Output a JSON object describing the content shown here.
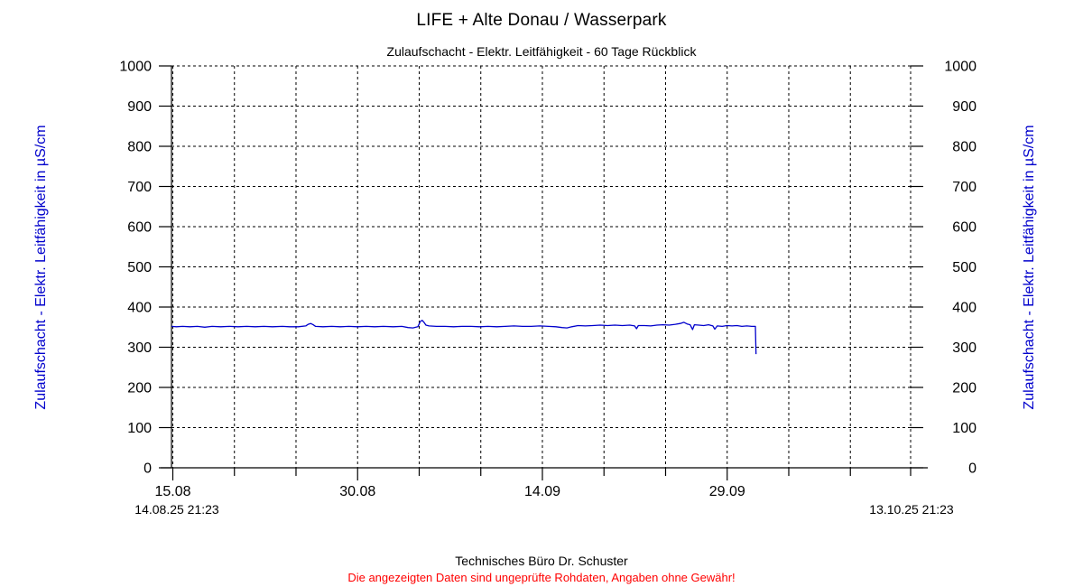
{
  "page": {
    "title": "LIFE + Alte Donau / Wasserpark",
    "subtitle": "Zulaufschacht - Elektr. Leitfähigkeit - 60 Tage Rückblick"
  },
  "footer": {
    "company": "Technisches Büro Dr. Schuster",
    "disclaimer": "Die angezeigten Daten sind ungeprüfte Rohdaten, Angaben ohne Gewähr!",
    "disclaimer_color": "#ff0000"
  },
  "chart_data": {
    "type": "line",
    "title": "LIFE + Alte Donau / Wasserpark",
    "subtitle": "Zulaufschacht - Elektr. Leitfähigkeit - 60 Tage Rückblick",
    "grid": "dashed",
    "line_color": "#0000cc",
    "axis_label_color": "#0000cc",
    "y_axis": {
      "label": "Zulaufschacht - Elektr. Leitfähigkeit in µS/cm",
      "unit": "µS/cm",
      "min": 0,
      "max": 1000,
      "tick_step": 100,
      "ticks": [
        0,
        100,
        200,
        300,
        400,
        500,
        600,
        700,
        800,
        900,
        1000
      ]
    },
    "x_axis": {
      "start_datetime": "14.08.25 21:23",
      "end_datetime": "13.10.25 21:23",
      "span_days": 60,
      "major_ticks": [
        {
          "day": 0.109,
          "label": "15.08"
        },
        {
          "day": 15.109,
          "label": "30.08"
        },
        {
          "day": 30.109,
          "label": "14.09"
        },
        {
          "day": 45.109,
          "label": "29.09"
        }
      ],
      "minor_tick_days": [
        5.109,
        10.109,
        20.109,
        25.109,
        35.109,
        40.109,
        50.109,
        55.109,
        60
      ]
    },
    "series": [
      {
        "name": "Zulaufschacht - Elektr. Leitfähigkeit",
        "unit": "µS/cm",
        "color": "#0000cc",
        "points": [
          [
            0,
            352
          ],
          [
            0.4,
            351
          ],
          [
            0.9,
            352
          ],
          [
            1.5,
            351
          ],
          [
            2.1,
            352
          ],
          [
            2.7,
            350
          ],
          [
            3.3,
            352
          ],
          [
            4.0,
            351
          ],
          [
            4.7,
            352
          ],
          [
            5.4,
            351
          ],
          [
            6.1,
            352
          ],
          [
            6.8,
            351
          ],
          [
            7.5,
            352
          ],
          [
            8.2,
            351
          ],
          [
            9.0,
            352
          ],
          [
            9.6,
            351
          ],
          [
            10.3,
            351
          ],
          [
            10.9,
            353
          ],
          [
            11.1,
            357
          ],
          [
            11.3,
            359
          ],
          [
            11.5,
            356
          ],
          [
            11.7,
            352
          ],
          [
            12.3,
            351
          ],
          [
            13.0,
            352
          ],
          [
            13.7,
            351
          ],
          [
            14.4,
            352
          ],
          [
            15.1,
            351
          ],
          [
            15.8,
            352
          ],
          [
            16.5,
            351
          ],
          [
            17.2,
            352
          ],
          [
            18.0,
            351
          ],
          [
            18.7,
            352
          ],
          [
            19.2,
            349
          ],
          [
            19.6,
            348
          ],
          [
            20.0,
            351
          ],
          [
            20.2,
            364
          ],
          [
            20.35,
            367
          ],
          [
            20.5,
            362
          ],
          [
            20.65,
            355
          ],
          [
            20.9,
            353
          ],
          [
            21.5,
            352
          ],
          [
            22.2,
            352
          ],
          [
            22.9,
            351
          ],
          [
            23.6,
            352
          ],
          [
            24.3,
            352
          ],
          [
            25.0,
            351
          ],
          [
            25.7,
            352
          ],
          [
            26.4,
            351
          ],
          [
            27.1,
            352
          ],
          [
            27.8,
            353
          ],
          [
            28.5,
            352
          ],
          [
            29.2,
            352
          ],
          [
            29.9,
            353
          ],
          [
            30.6,
            352
          ],
          [
            31.2,
            351
          ],
          [
            31.7,
            349
          ],
          [
            32.1,
            348
          ],
          [
            32.5,
            351
          ],
          [
            33.0,
            354
          ],
          [
            33.6,
            353
          ],
          [
            34.2,
            354
          ],
          [
            34.8,
            355
          ],
          [
            35.4,
            354
          ],
          [
            36.0,
            355
          ],
          [
            36.6,
            354
          ],
          [
            37.2,
            355
          ],
          [
            37.6,
            353
          ],
          [
            37.75,
            346
          ],
          [
            37.9,
            354
          ],
          [
            38.4,
            354
          ],
          [
            38.9,
            353
          ],
          [
            39.4,
            355
          ],
          [
            39.9,
            356
          ],
          [
            40.4,
            355
          ],
          [
            40.9,
            357
          ],
          [
            41.3,
            359
          ],
          [
            41.6,
            362
          ],
          [
            41.85,
            358
          ],
          [
            42.1,
            356
          ],
          [
            42.3,
            344
          ],
          [
            42.45,
            356
          ],
          [
            42.8,
            355
          ],
          [
            43.2,
            354
          ],
          [
            43.6,
            356
          ],
          [
            43.95,
            353
          ],
          [
            44.1,
            345
          ],
          [
            44.3,
            353
          ],
          [
            44.7,
            352
          ],
          [
            45.1,
            354
          ],
          [
            45.5,
            353
          ],
          [
            45.9,
            354
          ],
          [
            46.3,
            352
          ],
          [
            46.7,
            353
          ],
          [
            47.1,
            352
          ],
          [
            47.4,
            352
          ],
          [
            47.45,
            283
          ]
        ]
      }
    ]
  }
}
